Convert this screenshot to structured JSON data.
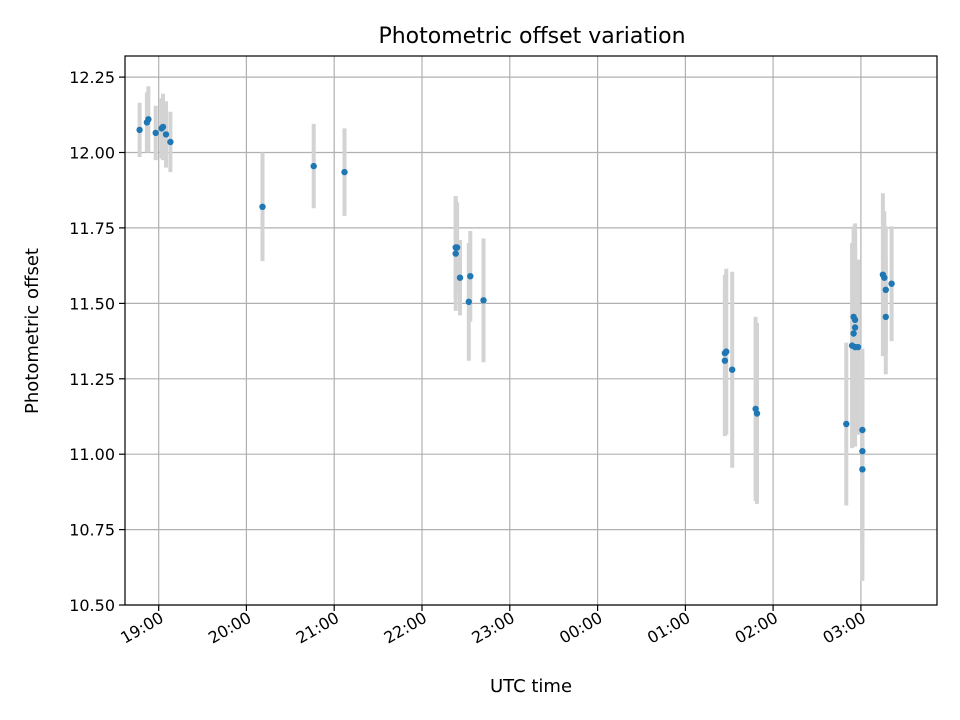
{
  "chart_data": {
    "type": "scatter",
    "title": "Photometric offset variation",
    "xlabel": "UTC time",
    "ylabel": "Photometric offset",
    "ylim": [
      10.5,
      12.32
    ],
    "xlim": [
      "18:37",
      "03:52"
    ],
    "x_ticks": [
      {
        "time": "19:00",
        "label": "19:00"
      },
      {
        "time": "20:00",
        "label": "20:00"
      },
      {
        "time": "21:00",
        "label": "21:00"
      },
      {
        "time": "22:00",
        "label": "22:00"
      },
      {
        "time": "23:00",
        "label": "23:00"
      },
      {
        "time": "00:00",
        "label": "00:00"
      },
      {
        "time": "01:00",
        "label": "01:00"
      },
      {
        "time": "02:00",
        "label": "02:00"
      },
      {
        "time": "03:00",
        "label": "03:00"
      }
    ],
    "y_ticks": [
      {
        "value": 10.5,
        "label": "10.50"
      },
      {
        "value": 10.75,
        "label": "10.75"
      },
      {
        "value": 11.0,
        "label": "11.00"
      },
      {
        "value": 11.25,
        "label": "11.25"
      },
      {
        "value": 11.5,
        "label": "11.50"
      },
      {
        "value": 11.75,
        "label": "11.75"
      },
      {
        "value": 12.0,
        "label": "12.00"
      },
      {
        "value": 12.25,
        "label": "12.25"
      }
    ],
    "grid": true,
    "point_color": "#1f77b4",
    "errorbar_color": "#d3d3d3",
    "points": [
      {
        "time": "18:47",
        "y": 12.075,
        "err": 0.09
      },
      {
        "time": "18:52",
        "y": 12.1,
        "err": 0.1
      },
      {
        "time": "18:53",
        "y": 12.11,
        "err": 0.11
      },
      {
        "time": "18:58",
        "y": 12.065,
        "err": 0.09
      },
      {
        "time": "19:02",
        "y": 12.08,
        "err": 0.1
      },
      {
        "time": "19:03",
        "y": 12.085,
        "err": 0.11
      },
      {
        "time": "19:05",
        "y": 12.06,
        "err": 0.11
      },
      {
        "time": "19:08",
        "y": 12.035,
        "err": 0.1
      },
      {
        "time": "20:11",
        "y": 11.82,
        "err": 0.18
      },
      {
        "time": "20:46",
        "y": 11.955,
        "err": 0.14
      },
      {
        "time": "21:07",
        "y": 11.935,
        "err": 0.145
      },
      {
        "time": "22:23",
        "y": 11.685,
        "err": 0.17
      },
      {
        "time": "22:23",
        "y": 11.665,
        "err": 0.19
      },
      {
        "time": "22:24",
        "y": 11.685,
        "err": 0.15
      },
      {
        "time": "22:26",
        "y": 11.585,
        "err": 0.125
      },
      {
        "time": "22:32",
        "y": 11.505,
        "err": 0.195
      },
      {
        "time": "22:33",
        "y": 11.59,
        "err": 0.15
      },
      {
        "time": "22:42",
        "y": 11.51,
        "err": 0.205
      },
      {
        "time": "01:27",
        "y": 11.335,
        "err": 0.26
      },
      {
        "time": "01:27",
        "y": 11.31,
        "err": 0.25
      },
      {
        "time": "01:28",
        "y": 11.34,
        "err": 0.275
      },
      {
        "time": "01:32",
        "y": 11.28,
        "err": 0.325
      },
      {
        "time": "01:48",
        "y": 11.15,
        "err": 0.305
      },
      {
        "time": "01:49",
        "y": 11.135,
        "err": 0.3
      },
      {
        "time": "02:50",
        "y": 11.1,
        "err": 0.27
      },
      {
        "time": "02:54",
        "y": 11.36,
        "err": 0.34
      },
      {
        "time": "02:55",
        "y": 11.455,
        "err": 0.3
      },
      {
        "time": "02:55",
        "y": 11.4,
        "err": 0.3
      },
      {
        "time": "02:56",
        "y": 11.445,
        "err": 0.32
      },
      {
        "time": "02:56",
        "y": 11.42,
        "err": 0.31
      },
      {
        "time": "02:56",
        "y": 11.355,
        "err": 0.33
      },
      {
        "time": "02:58",
        "y": 11.355,
        "err": 0.29
      },
      {
        "time": "03:01",
        "y": 11.08,
        "err": 0.27
      },
      {
        "time": "03:01",
        "y": 11.01,
        "err": 0.3
      },
      {
        "time": "03:01",
        "y": 10.95,
        "err": 0.37
      },
      {
        "time": "03:15",
        "y": 11.595,
        "err": 0.27
      },
      {
        "time": "03:16",
        "y": 11.585,
        "err": 0.22
      },
      {
        "time": "03:17",
        "y": 11.545,
        "err": 0.21
      },
      {
        "time": "03:17",
        "y": 11.455,
        "err": 0.19
      },
      {
        "time": "03:21",
        "y": 11.565,
        "err": 0.19
      }
    ]
  }
}
